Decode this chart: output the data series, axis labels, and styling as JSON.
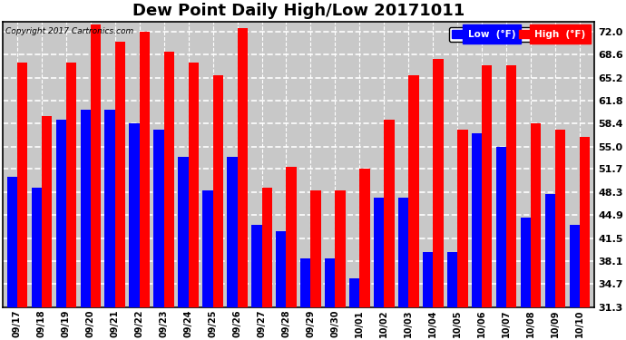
{
  "title": "Dew Point Daily High/Low 20171011",
  "copyright": "Copyright 2017 Cartronics.com",
  "categories": [
    "09/17",
    "09/18",
    "09/19",
    "09/20",
    "09/21",
    "09/22",
    "09/23",
    "09/24",
    "09/25",
    "09/26",
    "09/27",
    "09/28",
    "09/29",
    "09/30",
    "10/01",
    "10/02",
    "10/03",
    "10/04",
    "10/05",
    "10/06",
    "10/07",
    "10/08",
    "10/09",
    "10/10"
  ],
  "low_values": [
    50.5,
    49.0,
    59.0,
    60.5,
    60.5,
    58.5,
    57.5,
    53.5,
    48.5,
    53.5,
    43.5,
    42.5,
    38.5,
    38.5,
    35.5,
    47.5,
    47.5,
    39.5,
    39.5,
    57.0,
    55.0,
    44.5,
    48.0,
    43.5
  ],
  "high_values": [
    67.5,
    59.5,
    67.5,
    73.0,
    70.5,
    72.0,
    69.0,
    67.5,
    65.5,
    72.5,
    49.0,
    52.0,
    48.5,
    48.5,
    51.7,
    59.0,
    65.5,
    68.0,
    57.5,
    67.0,
    67.0,
    58.5,
    57.5,
    56.5
  ],
  "low_color": "#0000ff",
  "high_color": "#ff0000",
  "bg_color": "#ffffff",
  "plot_bg_color": "#c8c8c8",
  "grid_color": "#ffffff",
  "title_fontsize": 13,
  "ytick_values": [
    72.0,
    68.6,
    65.2,
    61.8,
    58.4,
    55.0,
    51.7,
    48.3,
    44.9,
    41.5,
    38.1,
    34.7,
    31.3
  ],
  "ymin": 31.3,
  "ymax": 73.5,
  "legend_low_label": "Low  (°F)",
  "legend_high_label": "High  (°F)"
}
